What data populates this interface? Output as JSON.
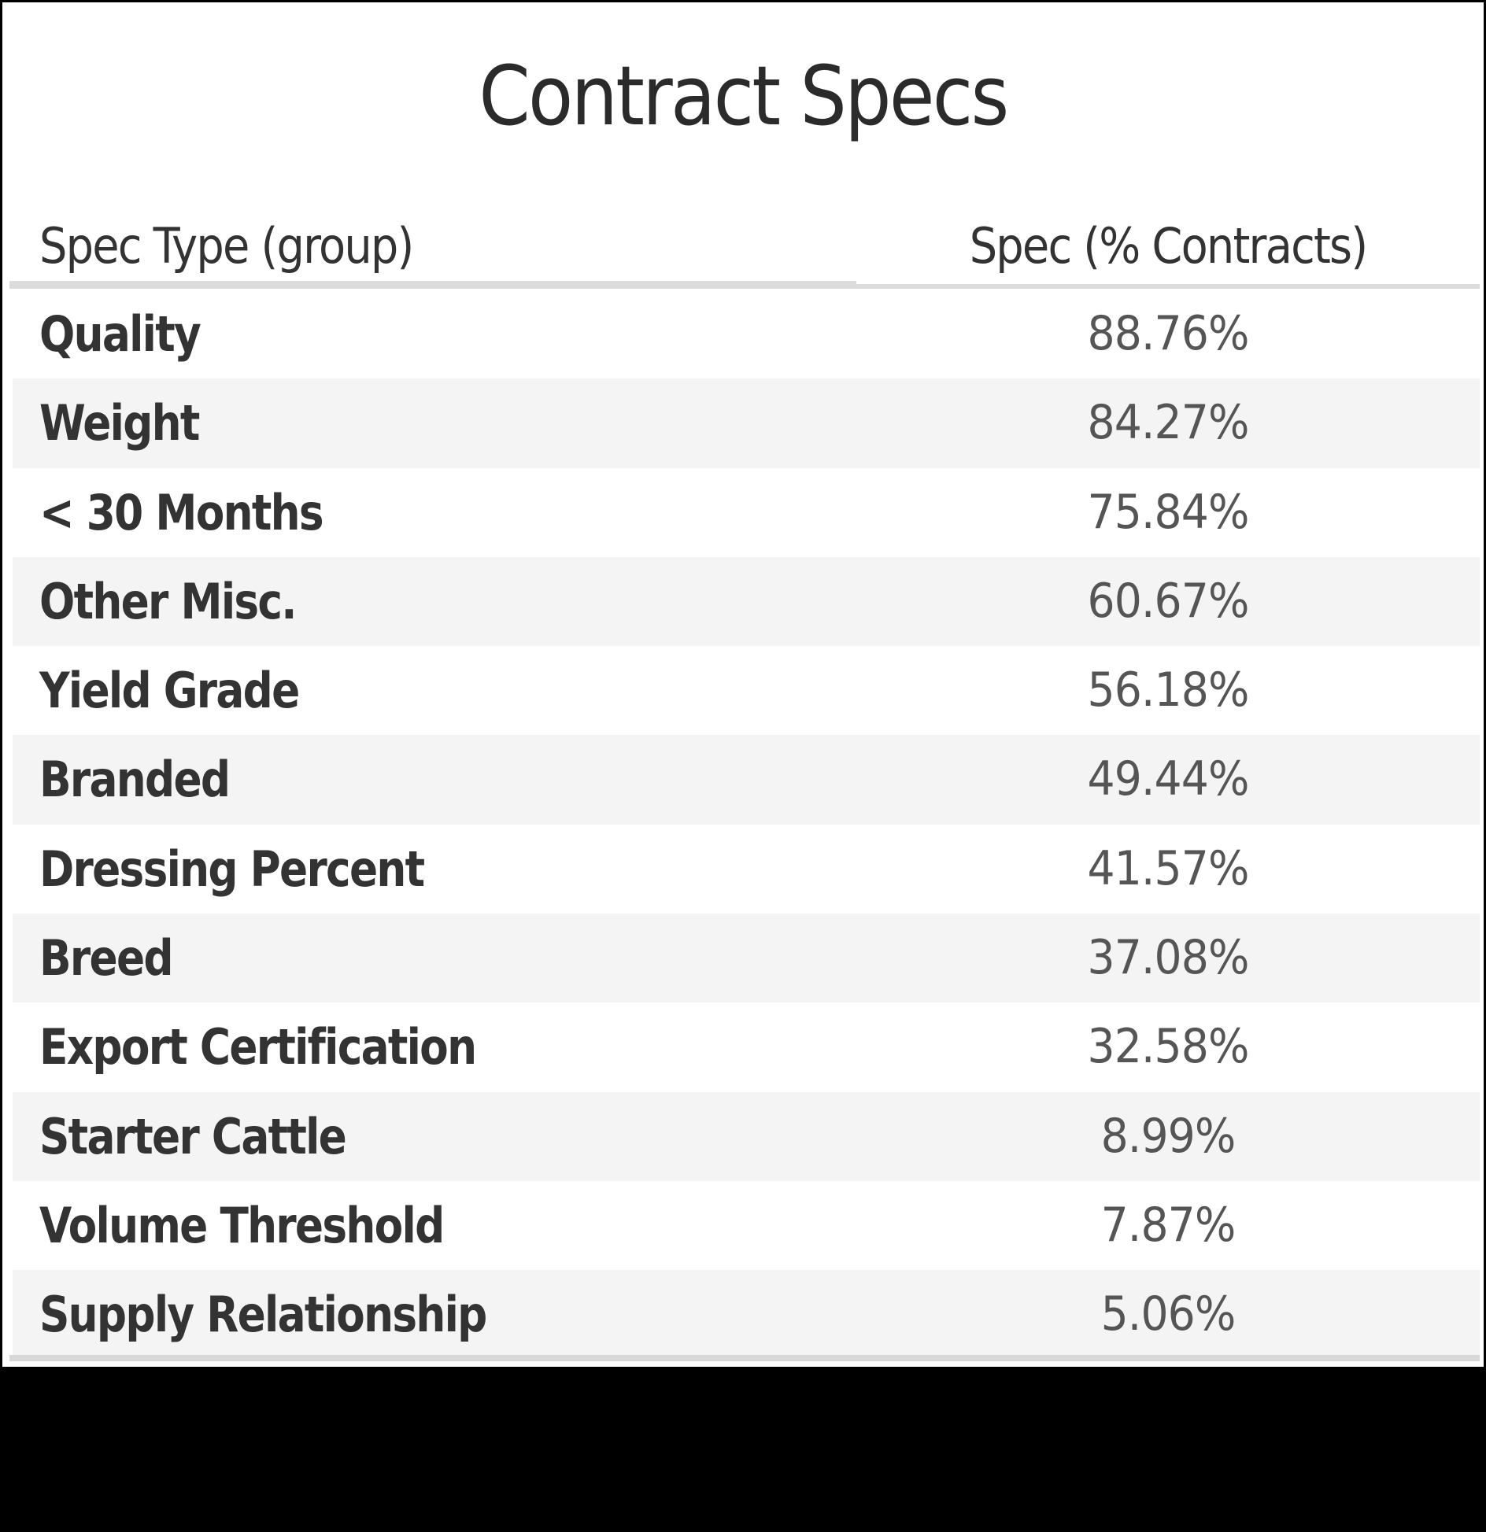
{
  "title": "Contract Specs",
  "table": {
    "columns": [
      "Spec Type (group)",
      "Spec (% Contracts)"
    ],
    "rows": [
      {
        "label": "Quality",
        "value": "88.76%"
      },
      {
        "label": "Weight",
        "value": "84.27%"
      },
      {
        "label": "< 30 Months",
        "value": "75.84%"
      },
      {
        "label": "Other Misc.",
        "value": "60.67%"
      },
      {
        "label": "Yield Grade",
        "value": "56.18%"
      },
      {
        "label": "Branded",
        "value": "49.44%"
      },
      {
        "label": "Dressing Percent",
        "value": "41.57%"
      },
      {
        "label": "Breed",
        "value": "37.08%"
      },
      {
        "label": "Export Certification",
        "value": "32.58%"
      },
      {
        "label": "Starter Cattle",
        "value": "8.99%"
      },
      {
        "label": "Volume Threshold",
        "value": "7.87%"
      },
      {
        "label": "Supply Relationship",
        "value": "5.06%"
      }
    ]
  },
  "colors": {
    "row_alt_bg": "#f4f4f4",
    "label_text": "#333333",
    "value_text": "#555555",
    "frame": "#000000"
  },
  "chart_data": {
    "type": "table",
    "title": "Contract Specs",
    "columns": [
      "Spec Type (group)",
      "Spec (% Contracts)"
    ],
    "categories": [
      "Quality",
      "Weight",
      "< 30 Months",
      "Other Misc.",
      "Yield Grade",
      "Branded",
      "Dressing Percent",
      "Breed",
      "Export Certification",
      "Starter Cattle",
      "Volume Threshold",
      "Supply Relationship"
    ],
    "values": [
      88.76,
      84.27,
      75.84,
      60.67,
      56.18,
      49.44,
      41.57,
      37.08,
      32.58,
      8.99,
      7.87,
      5.06
    ],
    "unit": "%"
  }
}
